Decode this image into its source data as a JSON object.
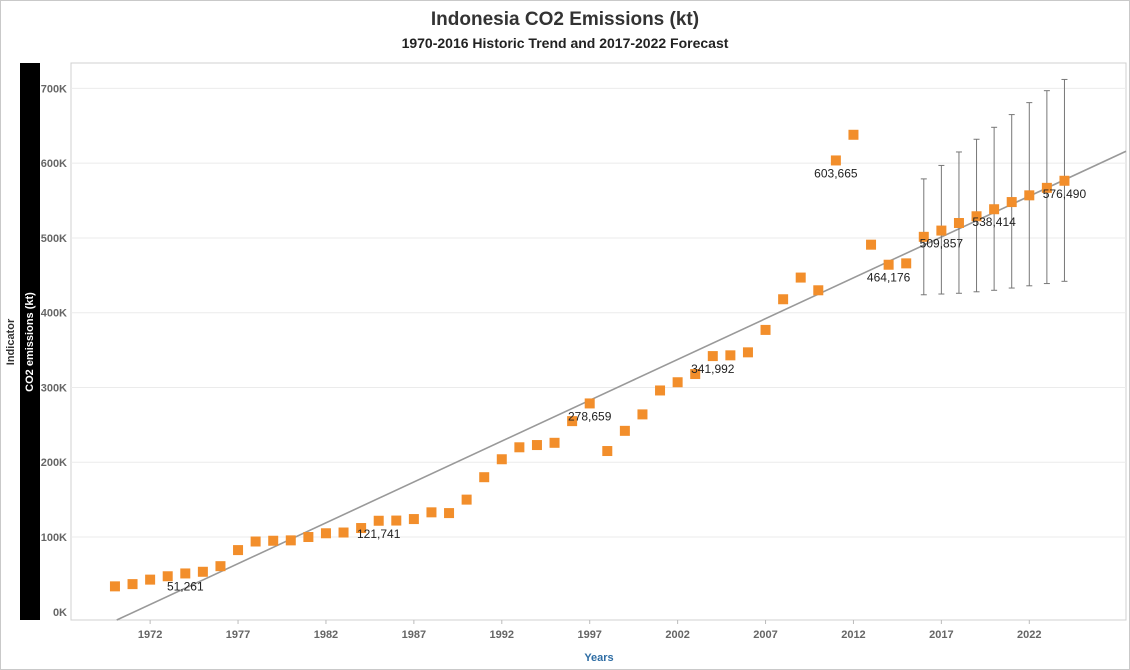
{
  "title": "Indonesia CO2 Emissions (kt)",
  "subtitle": "1970-2016 Historic Trend and 2017-2022 Forecast",
  "chart_data": {
    "type": "scatter",
    "title": "Indonesia CO2 Emissions (kt)",
    "subtitle": "1970-2016 Historic Trend and 2017-2022 Forecast",
    "xlabel": "Years",
    "ylabel_outer": "Indicator",
    "ylabel": "CO2 emissions (kt)",
    "x_ticks": [
      1972,
      1977,
      1982,
      1987,
      1992,
      1997,
      2002,
      2007,
      2012,
      2017,
      2022
    ],
    "y_ticks": [
      {
        "value": 0,
        "label": "0K"
      },
      {
        "value": 100000,
        "label": "100K"
      },
      {
        "value": 200000,
        "label": "200K"
      },
      {
        "value": 300000,
        "label": "300K"
      },
      {
        "value": 400000,
        "label": "400K"
      },
      {
        "value": 500000,
        "label": "500K"
      },
      {
        "value": 600000,
        "label": "600K"
      },
      {
        "value": 700000,
        "label": "700K"
      }
    ],
    "xlim": [
      1967.5,
      2027.5
    ],
    "ylim": [
      -11000,
      734000
    ],
    "grid": "horizontal",
    "marker_color": "#f28e2b",
    "trend_color": "#999999",
    "errorbar_color": "#777777",
    "series": [
      {
        "name": "Historic",
        "points": [
          {
            "x": 1970,
            "y": 34000
          },
          {
            "x": 1971,
            "y": 37000
          },
          {
            "x": 1972,
            "y": 43000
          },
          {
            "x": 1973,
            "y": 47500
          },
          {
            "x": 1974,
            "y": 51261,
            "label": "51,261"
          },
          {
            "x": 1975,
            "y": 53500
          },
          {
            "x": 1976,
            "y": 61000
          },
          {
            "x": 1977,
            "y": 82500
          },
          {
            "x": 1978,
            "y": 94000
          },
          {
            "x": 1979,
            "y": 95000
          },
          {
            "x": 1980,
            "y": 95500
          },
          {
            "x": 1981,
            "y": 100000
          },
          {
            "x": 1982,
            "y": 105000
          },
          {
            "x": 1983,
            "y": 106000
          },
          {
            "x": 1984,
            "y": 112000
          },
          {
            "x": 1985,
            "y": 121741,
            "label": "121,741"
          },
          {
            "x": 1986,
            "y": 122000
          },
          {
            "x": 1987,
            "y": 124000
          },
          {
            "x": 1988,
            "y": 133000
          },
          {
            "x": 1989,
            "y": 132000
          },
          {
            "x": 1990,
            "y": 150000
          },
          {
            "x": 1991,
            "y": 180000
          },
          {
            "x": 1992,
            "y": 204000
          },
          {
            "x": 1993,
            "y": 220000
          },
          {
            "x": 1994,
            "y": 223000
          },
          {
            "x": 1995,
            "y": 226000
          },
          {
            "x": 1996,
            "y": 255000
          },
          {
            "x": 1997,
            "y": 278659,
            "label": "278,659"
          },
          {
            "x": 1998,
            "y": 215000
          },
          {
            "x": 1999,
            "y": 242000
          },
          {
            "x": 2000,
            "y": 264000
          },
          {
            "x": 2001,
            "y": 296000
          },
          {
            "x": 2002,
            "y": 307000
          },
          {
            "x": 2003,
            "y": 318000
          },
          {
            "x": 2004,
            "y": 341992,
            "label": "341,992"
          },
          {
            "x": 2005,
            "y": 343000
          },
          {
            "x": 2006,
            "y": 347000
          },
          {
            "x": 2007,
            "y": 377000
          },
          {
            "x": 2008,
            "y": 418000
          },
          {
            "x": 2009,
            "y": 447000
          },
          {
            "x": 2010,
            "y": 430000
          },
          {
            "x": 2011,
            "y": 603665,
            "label": "603,665"
          },
          {
            "x": 2012,
            "y": 638000
          },
          {
            "x": 2013,
            "y": 491000
          },
          {
            "x": 2014,
            "y": 464176,
            "label": "464,176"
          },
          {
            "x": 2015,
            "y": 466000
          }
        ]
      },
      {
        "name": "Forecast",
        "points": [
          {
            "x": 2016,
            "y": 501500,
            "low": 424000,
            "high": 579000
          },
          {
            "x": 2017,
            "y": 509857,
            "low": 425000,
            "high": 597000,
            "label": "509,857"
          },
          {
            "x": 2018,
            "y": 520000,
            "low": 426000,
            "high": 615000
          },
          {
            "x": 2019,
            "y": 529000,
            "low": 428000,
            "high": 632000
          },
          {
            "x": 2020,
            "y": 538414,
            "low": 430000,
            "high": 648000,
            "label": "538,414"
          },
          {
            "x": 2021,
            "y": 548000,
            "low": 433000,
            "high": 665000
          },
          {
            "x": 2022,
            "y": 557000,
            "low": 436000,
            "high": 681000
          },
          {
            "x": 2023,
            "y": 567000,
            "low": 439000,
            "high": 697000
          },
          {
            "x": 2024,
            "y": 576490,
            "low": 442000,
            "high": 712000,
            "label": "576,490"
          }
        ]
      }
    ],
    "trend_line": {
      "x1": 1970.1,
      "y1": -11000,
      "x2": 2027.5,
      "y2": 616000
    }
  }
}
